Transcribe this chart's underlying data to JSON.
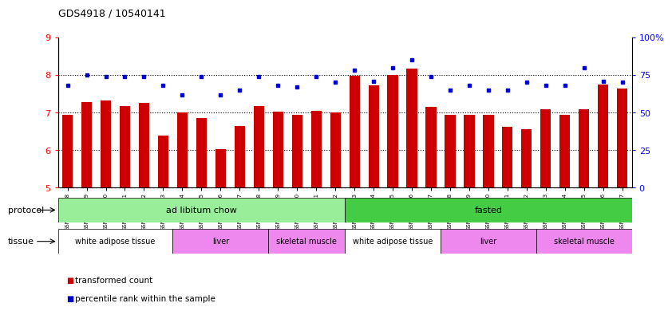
{
  "title": "GDS4918 / 10540141",
  "samples": [
    "GSM1131278",
    "GSM1131279",
    "GSM1131280",
    "GSM1131281",
    "GSM1131282",
    "GSM1131283",
    "GSM1131284",
    "GSM1131285",
    "GSM1131286",
    "GSM1131287",
    "GSM1131288",
    "GSM1131289",
    "GSM1131290",
    "GSM1131291",
    "GSM1131292",
    "GSM1131293",
    "GSM1131294",
    "GSM1131295",
    "GSM1131296",
    "GSM1131297",
    "GSM1131298",
    "GSM1131299",
    "GSM1131300",
    "GSM1131301",
    "GSM1131302",
    "GSM1131303",
    "GSM1131304",
    "GSM1131305",
    "GSM1131306",
    "GSM1131307"
  ],
  "bar_values": [
    6.93,
    7.28,
    7.32,
    7.18,
    7.26,
    6.38,
    7.0,
    6.85,
    6.02,
    6.65,
    7.18,
    7.02,
    6.95,
    7.04,
    7.0,
    7.98,
    7.72,
    8.0,
    8.18,
    7.15,
    6.95,
    6.95,
    6.95,
    6.62,
    6.55,
    7.08,
    6.95,
    7.08,
    7.75,
    7.65
  ],
  "blue_values_pct": [
    68,
    75,
    74,
    74,
    74,
    68,
    62,
    74,
    62,
    65,
    74,
    68,
    67,
    74,
    70,
    78,
    71,
    80,
    85,
    74,
    65,
    68,
    65,
    65,
    70,
    68,
    68,
    80,
    71,
    70
  ],
  "ylim": [
    5,
    9
  ],
  "yticks_left": [
    5,
    6,
    7,
    8,
    9
  ],
  "yticks_right": [
    0,
    25,
    50,
    75,
    100
  ],
  "bar_color": "#cc0000",
  "dot_color": "#0000cc",
  "bg_color": "#ffffff",
  "protocol_groups": [
    {
      "label": "ad libitum chow",
      "start": 0,
      "end": 15,
      "color": "#99ee99"
    },
    {
      "label": "fasted",
      "start": 15,
      "end": 30,
      "color": "#44cc44"
    }
  ],
  "tissue_groups": [
    {
      "label": "white adipose tissue",
      "start": 0,
      "end": 6,
      "color": "#ffffff"
    },
    {
      "label": "liver",
      "start": 6,
      "end": 11,
      "color": "#ee88ee"
    },
    {
      "label": "skeletal muscle",
      "start": 11,
      "end": 15,
      "color": "#ee88ee"
    },
    {
      "label": "white adipose tissue",
      "start": 15,
      "end": 20,
      "color": "#ffffff"
    },
    {
      "label": "liver",
      "start": 20,
      "end": 25,
      "color": "#ee88ee"
    },
    {
      "label": "skeletal muscle",
      "start": 25,
      "end": 30,
      "color": "#ee88ee"
    }
  ],
  "dotted_lines": [
    6,
    7,
    8
  ],
  "legend": [
    {
      "color": "#cc0000",
      "label": "transformed count"
    },
    {
      "color": "#0000cc",
      "label": "percentile rank within the sample"
    }
  ]
}
